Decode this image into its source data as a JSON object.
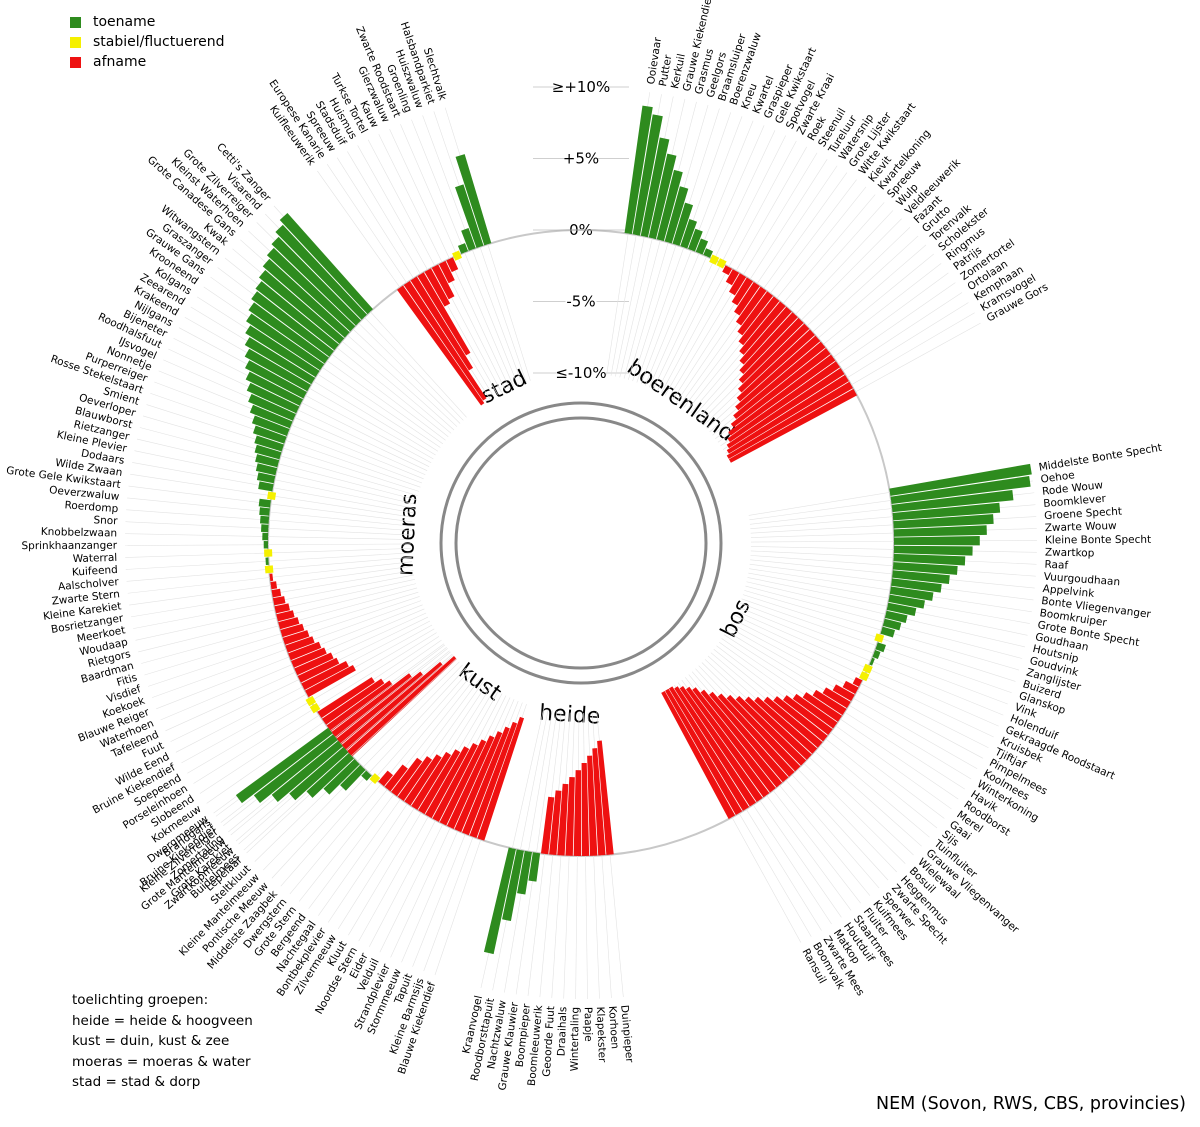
{
  "legend": {
    "increase": "toename",
    "stable": "stabiel/fluctuerend",
    "decrease": "afname"
  },
  "notes": {
    "title": "toelichting groepen:",
    "lines": [
      "heide = heide & hoogveen",
      "kust = duin, kust & zee",
      "moeras = moeras & water",
      "stad = stad & dorp"
    ]
  },
  "source": "NEM (Sovon, RWS, CBS, provincies)",
  "colors": {
    "increase": "#2e8b1e",
    "stable": "#f5f000",
    "decrease": "#ee1111",
    "ring": "#888888",
    "grid": "#cfcfcf"
  },
  "chart_data": {
    "type": "bar",
    "layout": "radial",
    "axis_labels": [
      "≥+10%",
      "+5%",
      "0%",
      "-5%",
      "≤-10%"
    ],
    "ylim": [
      -10,
      10
    ],
    "unit": "% per jaar",
    "groups": [
      {
        "name": "stad",
        "birds": [
          {
            "name": "Kuifleeuwerik",
            "value": -10
          },
          {
            "name": "Europese Kanarie",
            "value": -9.8
          },
          {
            "name": "Spreeuw",
            "value": -7.5
          },
          {
            "name": "Stadsduif",
            "value": -6.5
          },
          {
            "name": "Huismus",
            "value": -2.8
          },
          {
            "name": "Turkse Tortel",
            "value": -2.5
          },
          {
            "name": "Kauw",
            "value": -1.5
          },
          {
            "name": "Gierzwaluw",
            "value": -0.9
          },
          {
            "name": "Zwarte Roodstaart",
            "value": 0,
            "trend": "stable"
          },
          {
            "name": "Groenling",
            "value": 0.6
          },
          {
            "name": "Huiszwaluw",
            "value": 1.5
          },
          {
            "name": "Halsbandparkiet",
            "value": 4.5
          },
          {
            "name": "Slechtvalk",
            "value": 6.5
          }
        ]
      },
      {
        "name": "moeras",
        "birds": [
          {
            "name": "Buidelmees",
            "value": -10
          },
          {
            "name": "Grote Karekiet",
            "value": -9
          },
          {
            "name": "Zomertaling",
            "value": -7.5
          },
          {
            "name": "Bruine Kiekendief",
            "value": -6.8
          },
          {
            "name": "Dwergmeeuw",
            "value": -5.4
          },
          {
            "name": "Kokmeeuw",
            "value": -5
          },
          {
            "name": "Slobeend",
            "value": -4.5
          },
          {
            "name": "Porseleinhoen",
            "value": 0,
            "trend": "stable"
          },
          {
            "name": "Soepeend",
            "value": 0,
            "trend": "stable"
          },
          {
            "name": "Bruine Kiekendief",
            "value": -3.8
          },
          {
            "name": "Wilde Eend",
            "value": -3.5
          },
          {
            "name": "Fuut",
            "value": -3
          },
          {
            "name": "Tafeleend",
            "value": -2.8
          },
          {
            "name": "Waterhoen",
            "value": -2.5
          },
          {
            "name": "Blauwe Reiger",
            "value": -2.3
          },
          {
            "name": "Koekoek",
            "value": -2
          },
          {
            "name": "Visdief",
            "value": -1.8
          },
          {
            "name": "Fitis",
            "value": -1.6
          },
          {
            "name": "Baardman",
            "value": -1.4
          },
          {
            "name": "Rietgors",
            "value": -1.2
          },
          {
            "name": "Woudaap",
            "value": -1
          },
          {
            "name": "Meerkoet",
            "value": -0.8
          },
          {
            "name": "Bosrietzanger",
            "value": -0.6
          },
          {
            "name": "Kleine Karekiet",
            "value": -0.4
          },
          {
            "name": "Zwarte Stern",
            "value": -0.2
          },
          {
            "name": "Aalscholver",
            "value": 0,
            "trend": "stable"
          },
          {
            "name": "Kuifeend",
            "value": 0.2
          },
          {
            "name": "Waterral",
            "value": 0,
            "trend": "stable"
          },
          {
            "name": "Sprinkhaanzanger",
            "value": 0.3
          },
          {
            "name": "Knobbelzwaan",
            "value": 0.4
          },
          {
            "name": "Snor",
            "value": 0.5
          },
          {
            "name": "Roerdomp",
            "value": 0.6
          },
          {
            "name": "Oeverzwaluw",
            "value": 0.7
          },
          {
            "name": "Grote Gele Kwikstaart",
            "value": 0.8
          },
          {
            "name": "Wilde Zwaan",
            "value": 0,
            "trend": "stable"
          },
          {
            "name": "Dodaars",
            "value": 1
          },
          {
            "name": "Kleine Plevier",
            "value": 1.2
          },
          {
            "name": "Rietzanger",
            "value": 1.4
          },
          {
            "name": "Blauwborst",
            "value": 1.6
          },
          {
            "name": "Oeverloper",
            "value": 1.8
          },
          {
            "name": "Smient",
            "value": 2
          },
          {
            "name": "Rosse Stekelstaart",
            "value": 2.3
          },
          {
            "name": "Purperreiger",
            "value": 2.6
          },
          {
            "name": "Nonnetje",
            "value": 3
          },
          {
            "name": "IJsvogel",
            "value": 3.4
          },
          {
            "name": "Roodhalsfuut",
            "value": 3.8
          },
          {
            "name": "Bijeneter",
            "value": 4.2
          },
          {
            "name": "Nijlgans",
            "value": 4.6
          },
          {
            "name": "Krakeend",
            "value": 5
          },
          {
            "name": "Zeearend",
            "value": 5.4
          },
          {
            "name": "Kolgans",
            "value": 5.8
          },
          {
            "name": "Krooneend",
            "value": 6.2
          },
          {
            "name": "Grauwe Gans",
            "value": 6.5
          },
          {
            "name": "Graszanger",
            "value": 6.8
          },
          {
            "name": "Witwangstern",
            "value": 7
          },
          {
            "name": "Kwak",
            "value": 7.3
          },
          {
            "name": "Grote Canadese Gans",
            "value": 7.6
          },
          {
            "name": "Kleinst Waterhoen",
            "value": 7.9
          },
          {
            "name": "Grote Zilverreiger",
            "value": 8.2
          },
          {
            "name": "Visarend",
            "value": 8.6
          },
          {
            "name": "Cetti's Zanger",
            "value": 9
          }
        ]
      },
      {
        "name": "kust",
        "birds": [
          {
            "name": "Blauwe Kiekendief",
            "value": -9
          },
          {
            "name": "Kleine Barmsijs",
            "value": -8.5
          },
          {
            "name": "Tapuit",
            "value": -8
          },
          {
            "name": "Stormmeeuw",
            "value": -7.5
          },
          {
            "name": "Strandplevier",
            "value": -7
          },
          {
            "name": "Velduil",
            "value": -6.5
          },
          {
            "name": "Eider",
            "value": -6
          },
          {
            "name": "Noordse Stern",
            "value": -5.5
          },
          {
            "name": "Kluut",
            "value": -5
          },
          {
            "name": "Zilvermeeuw",
            "value": -4.5
          },
          {
            "name": "Bontbekplevier",
            "value": -4
          },
          {
            "name": "Nachtegaal",
            "value": -3.5
          },
          {
            "name": "Bergeend",
            "value": -3
          },
          {
            "name": "Grote Stern",
            "value": -2
          },
          {
            "name": "Dwergstern",
            "value": -1
          },
          {
            "name": "Middelste Zaagbek",
            "value": 0,
            "trend": "stable"
          },
          {
            "name": "Pontische Meeuw",
            "value": 0.5
          },
          {
            "name": "Kleine Mantelmeeuw",
            "value": 2
          },
          {
            "name": "Steltkluut",
            "value": 3
          },
          {
            "name": "Lepelaar",
            "value": 4
          },
          {
            "name": "Zwartkopmeeuw",
            "value": 5
          },
          {
            "name": "Grote Mantelmeeuw",
            "value": 6
          },
          {
            "name": "Kleine Zilverreiger",
            "value": 7
          },
          {
            "name": "Brandgans",
            "value": 8
          }
        ]
      },
      {
        "name": "heide",
        "birds": [
          {
            "name": "Duinpieper",
            "value": -8
          },
          {
            "name": "Korhoen",
            "value": -7.5
          },
          {
            "name": "Klapekster",
            "value": -7
          },
          {
            "name": "Paapje",
            "value": -6.5
          },
          {
            "name": "Wintertaling",
            "value": -6
          },
          {
            "name": "Draaihals",
            "value": -5.5
          },
          {
            "name": "Geoorde Fuut",
            "value": -5
          },
          {
            "name": "Boomleeuwerik",
            "value": -4.5
          },
          {
            "name": "Boompieper",
            "value": -4
          },
          {
            "name": "Grauwe Klauwier",
            "value": 2
          },
          {
            "name": "Nachtzwaluw",
            "value": 3
          },
          {
            "name": "Roodborsttapuit",
            "value": 5
          },
          {
            "name": "Kraanvogel",
            "value": 7.5
          }
        ]
      },
      {
        "name": "bos",
        "birds": [
          {
            "name": "Middelste Bonte Specht",
            "value": 10
          },
          {
            "name": "Oehoe",
            "value": 9.8
          },
          {
            "name": "Rode Wouw",
            "value": 8.5
          },
          {
            "name": "Boomklever",
            "value": 7.5
          },
          {
            "name": "Groene Specht",
            "value": 7
          },
          {
            "name": "Zwarte Wouw",
            "value": 6.5
          },
          {
            "name": "Kleine Bonte Specht",
            "value": 6
          },
          {
            "name": "Zwartkop",
            "value": 5.5
          },
          {
            "name": "Raaf",
            "value": 5
          },
          {
            "name": "Vuurgoudhaan",
            "value": 4.5
          },
          {
            "name": "Appelvink",
            "value": 4
          },
          {
            "name": "Bonte Vliegenvanger",
            "value": 3.5
          },
          {
            "name": "Boomkruiper",
            "value": 3
          },
          {
            "name": "Grote Bonte Specht",
            "value": 2.5
          },
          {
            "name": "Goudhaan",
            "value": 2
          },
          {
            "name": "Houtsnip",
            "value": 1.5
          },
          {
            "name": "Goudvink",
            "value": 1.2
          },
          {
            "name": "Zanglijster",
            "value": 0.9
          },
          {
            "name": "Buizerd",
            "value": 0,
            "trend": "stable"
          },
          {
            "name": "Glanskop",
            "value": 0.6
          },
          {
            "name": "Vink",
            "value": 0.4
          },
          {
            "name": "Holenduif",
            "value": 0.2
          },
          {
            "name": "Gekraagde Roodstaart",
            "value": 0,
            "trend": "stable"
          },
          {
            "name": "Kruisbek",
            "value": 0,
            "trend": "stable"
          },
          {
            "name": "Tjiftjaf",
            "value": -0.5
          },
          {
            "name": "Pimpelmees",
            "value": -1
          },
          {
            "name": "Koolmees",
            "value": -1.5
          },
          {
            "name": "Winterkoning",
            "value": -2
          },
          {
            "name": "Havik",
            "value": -2.5
          },
          {
            "name": "Roodborst",
            "value": -3
          },
          {
            "name": "Merel",
            "value": -3.5
          },
          {
            "name": "Gaai",
            "value": -4
          },
          {
            "name": "Sijs",
            "value": -4.5
          },
          {
            "name": "Tuinfluiter",
            "value": -5
          },
          {
            "name": "Grauwe Vliegenvanger",
            "value": -5.5
          },
          {
            "name": "Wielewaal",
            "value": -6
          },
          {
            "name": "Bosuil",
            "value": -6.5
          },
          {
            "name": "Heggenmus",
            "value": -7
          },
          {
            "name": "Zwarte Specht",
            "value": -7.5
          },
          {
            "name": "Sperwer",
            "value": -8
          },
          {
            "name": "Kuifmees",
            "value": -8.5
          },
          {
            "name": "Fluiter",
            "value": -9
          },
          {
            "name": "Staartmees",
            "value": -9.3
          },
          {
            "name": "Houtduif",
            "value": -9.6
          },
          {
            "name": "Matkop",
            "value": -9.8
          },
          {
            "name": "Zwarte Mees",
            "value": -10
          },
          {
            "name": "Boomvalk",
            "value": -10
          },
          {
            "name": "Ransuil",
            "value": -10
          }
        ]
      },
      {
        "name": "boerenland",
        "birds": [
          {
            "name": "Ooievaar",
            "value": 9
          },
          {
            "name": "Putter",
            "value": 8.5
          },
          {
            "name": "Kerkuil",
            "value": 7
          },
          {
            "name": "Grauwe Kiekendief",
            "value": 6
          },
          {
            "name": "Grasmus",
            "value": 5
          },
          {
            "name": "Geelgors",
            "value": 4
          },
          {
            "name": "Braamsluiper",
            "value": 3
          },
          {
            "name": "Boerenzwaluw",
            "value": 2
          },
          {
            "name": "Kneu",
            "value": 1.5
          },
          {
            "name": "Kwartel",
            "value": 1
          },
          {
            "name": "Graspieper",
            "value": 0.5
          },
          {
            "name": "Gele Kwikstaart",
            "value": 0,
            "trend": "stable"
          },
          {
            "name": "Spotvogel",
            "value": 0,
            "trend": "stable"
          },
          {
            "name": "Zwarte Kraai",
            "value": -0.5
          },
          {
            "name": "Roek",
            "value": -1
          },
          {
            "name": "Steenuil",
            "value": -1.5
          },
          {
            "name": "Tureluur",
            "value": -2
          },
          {
            "name": "Watersnip",
            "value": -2.5
          },
          {
            "name": "Grote Lijster",
            "value": -3
          },
          {
            "name": "Witte Kwikstaart",
            "value": -3.5
          },
          {
            "name": "Kievit",
            "value": -4
          },
          {
            "name": "Kwartelkoning",
            "value": -4.5
          },
          {
            "name": "Spreeuw",
            "value": -5
          },
          {
            "name": "Wulp",
            "value": -5.5
          },
          {
            "name": "Veldleeuwerik",
            "value": -6
          },
          {
            "name": "Fazant",
            "value": -6.5
          },
          {
            "name": "Grutto",
            "value": -7
          },
          {
            "name": "Torenvalk",
            "value": -7.5
          },
          {
            "name": "Scholekster",
            "value": -8
          },
          {
            "name": "Ringmus",
            "value": -8.5
          },
          {
            "name": "Patrijs",
            "value": -9
          },
          {
            "name": "Zomertortel",
            "value": -9.3
          },
          {
            "name": "Ortolaan",
            "value": -9.6
          },
          {
            "name": "Kemphaan",
            "value": -9.8
          },
          {
            "name": "Kramsvogel",
            "value": -10
          },
          {
            "name": "Grauwe Gors",
            "value": -10
          }
        ]
      }
    ]
  }
}
